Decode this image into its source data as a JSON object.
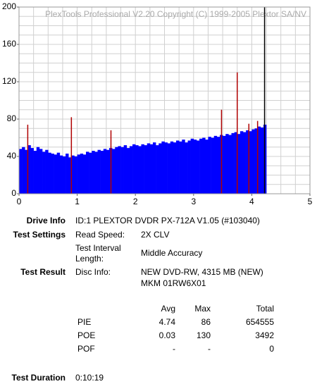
{
  "chart_data": {
    "type": "bar",
    "watermark": "PlexTools Professional V2.20 Copyright (C) 1999-2005 Plextor SA/NV",
    "xlim": [
      0,
      5
    ],
    "xticks": [
      0,
      1,
      2,
      3,
      4,
      5
    ],
    "ylim": [
      0,
      200
    ],
    "yticks": [
      0,
      40,
      80,
      120,
      160,
      200
    ],
    "x_gridlines": [
      0,
      0.25,
      0.5,
      0.75,
      1,
      1.25,
      1.5,
      1.75,
      2,
      2.25,
      2.5,
      2.75,
      3,
      3.25,
      3.5,
      3.75,
      4,
      4.25,
      4.5,
      4.75,
      5
    ],
    "y_gridlines": [
      0,
      10,
      20,
      30,
      40,
      50,
      60,
      70,
      80,
      90,
      100,
      110,
      120,
      130,
      140,
      150,
      160,
      170,
      180,
      190,
      200
    ],
    "end_x": 4.22,
    "end_color": "#000000",
    "series": [
      {
        "color": "#0000ff",
        "x": [
          0,
          0.05,
          0.1,
          0.15,
          0.2,
          0.25,
          0.3,
          0.35,
          0.4,
          0.45,
          0.5,
          0.55,
          0.6,
          0.65,
          0.7,
          0.75,
          0.8,
          0.85,
          0.9,
          0.95,
          1,
          1.05,
          1.1,
          1.15,
          1.2,
          1.25,
          1.3,
          1.35,
          1.4,
          1.45,
          1.5,
          1.55,
          1.6,
          1.65,
          1.7,
          1.75,
          1.8,
          1.85,
          1.9,
          1.95,
          2,
          2.05,
          2.1,
          2.15,
          2.2,
          2.25,
          2.3,
          2.35,
          2.4,
          2.45,
          2.5,
          2.55,
          2.6,
          2.65,
          2.7,
          2.75,
          2.8,
          2.85,
          2.9,
          2.95,
          3,
          3.05,
          3.1,
          3.15,
          3.2,
          3.25,
          3.3,
          3.35,
          3.4,
          3.45,
          3.5,
          3.55,
          3.6,
          3.65,
          3.7,
          3.75,
          3.8,
          3.85,
          3.9,
          3.95,
          4,
          4.05,
          4.1,
          4.15,
          4.2
        ],
        "values": [
          48,
          50,
          47,
          52,
          49,
          46,
          50,
          48,
          45,
          47,
          44,
          43,
          42,
          44,
          41,
          40,
          43,
          39,
          41,
          40,
          42,
          43,
          42,
          45,
          44,
          46,
          45,
          47,
          46,
          48,
          47,
          49,
          48,
          50,
          51,
          50,
          52,
          49,
          51,
          53,
          52,
          51,
          53,
          52,
          54,
          53,
          55,
          52,
          54,
          56,
          55,
          54,
          56,
          55,
          57,
          56,
          58,
          55,
          57,
          59,
          58,
          57,
          59,
          60,
          58,
          61,
          60,
          62,
          61,
          63,
          62,
          64,
          63,
          65,
          66,
          64,
          67,
          66,
          68,
          67,
          69,
          70,
          72,
          71,
          74
        ]
      },
      {
        "color": "#b00000",
        "x": [
          0.15,
          0.9,
          1.58,
          3.48,
          3.75,
          3.95,
          4.1
        ],
        "values": [
          74,
          82,
          68,
          90,
          130,
          75,
          78
        ]
      }
    ]
  },
  "drive_info": {
    "label": "Drive Info",
    "value": "ID:1 PLEXTOR DVDR PX-712A V1.05 (#103040)"
  },
  "test_settings": {
    "label": "Test Settings",
    "rows": [
      [
        "Read Speed:",
        "2X CLV"
      ],
      [
        "Test Interval",
        "Length:",
        "Middle Accuracy"
      ]
    ]
  },
  "test_result": {
    "label": "Test Result",
    "key": "Disc Info:",
    "lines": [
      "NEW DVD-RW, 4315 MB (NEW)",
      "MKM 01RW6X01"
    ]
  },
  "stats": {
    "headers": [
      "Avg",
      "Max",
      "Total"
    ],
    "rows": [
      [
        "PIE",
        4.74,
        86,
        654555
      ],
      [
        "POE",
        0.03,
        130,
        3492
      ],
      [
        "POF",
        "-",
        "-",
        0
      ]
    ]
  },
  "test_duration": {
    "label": "Test Duration",
    "value": "0:10:19"
  }
}
